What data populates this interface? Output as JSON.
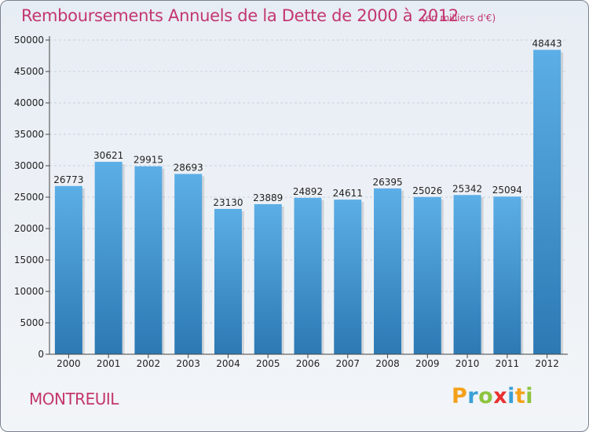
{
  "title": "Remboursements Annuels de la Dette de 2000 à 2012",
  "subtitle": "(en milliers d'€)",
  "city": "MONTREUIL",
  "brand": {
    "text": "Proxiti",
    "letters": [
      {
        "char": "P",
        "color": "#f4a11a"
      },
      {
        "char": "r",
        "color": "#3aa0d8"
      },
      {
        "char": "o",
        "color": "#8cc43f"
      },
      {
        "char": "x",
        "color": "#e8312f"
      },
      {
        "char": "i",
        "color": "#3aa0d8"
      },
      {
        "char": "t",
        "color": "#f4a11a"
      },
      {
        "char": "i",
        "color": "#8cc43f"
      }
    ]
  },
  "colors": {
    "accent": "#c3366e",
    "bar_top": "#5caee6",
    "bar_bottom": "#2c79b4",
    "grid": "#c9d1dc",
    "axis": "#444444"
  },
  "chart_data": {
    "type": "bar",
    "title": "Remboursements Annuels de la Dette de 2000 à 2012",
    "subtitle": "(en milliers d'€)",
    "categories": [
      "2000",
      "2001",
      "2002",
      "2003",
      "2004",
      "2005",
      "2006",
      "2007",
      "2008",
      "2009",
      "2010",
      "2011",
      "2012"
    ],
    "values": [
      26773,
      30621,
      29915,
      28693,
      23130,
      23889,
      24892,
      24611,
      26395,
      25026,
      25342,
      25094,
      48443
    ],
    "ylim": [
      0,
      50000
    ],
    "yticks": [
      0,
      5000,
      10000,
      15000,
      20000,
      25000,
      30000,
      35000,
      40000,
      45000,
      50000
    ],
    "grid": true,
    "data_labels": true
  }
}
